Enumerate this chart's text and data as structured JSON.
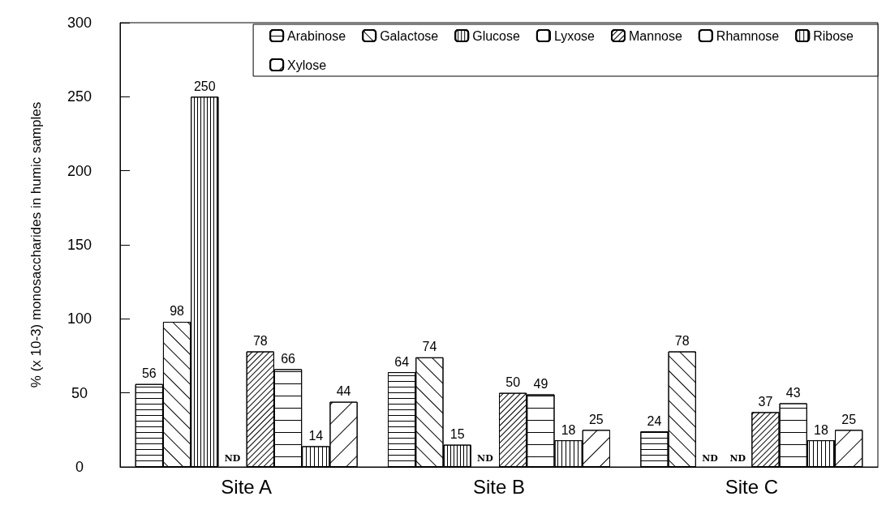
{
  "chart_data": {
    "type": "bar",
    "ylabel": "% (x 10-3) monosaccharides in humic samples",
    "categories": [
      "Site A",
      "Site B",
      "Site C"
    ],
    "ylim": [
      0,
      300
    ],
    "yticks": [
      0,
      50,
      100,
      150,
      200,
      250,
      300
    ],
    "grid": false,
    "legend": "top right",
    "series": [
      {
        "name": "Arabinose",
        "color": "#ffffff",
        "values": [
          56,
          64,
          24
        ],
        "value_labels": [
          "56",
          "64",
          "24"
        ]
      },
      {
        "name": "Galactose",
        "color": "#ffffff",
        "values": [
          98,
          74,
          78
        ],
        "value_labels": [
          "98",
          "74",
          "78"
        ]
      },
      {
        "name": "Glucose",
        "color": "#ffffff",
        "values": [
          250,
          15,
          null
        ],
        "value_labels": [
          "250",
          "15",
          "ND"
        ]
      },
      {
        "name": "Lyxose",
        "color": "#ffffff",
        "values": [
          null,
          null,
          null
        ],
        "value_labels": [
          "ND",
          "ND",
          "ND"
        ]
      },
      {
        "name": "Mannose",
        "color": "#ffffff",
        "values": [
          78,
          50,
          37
        ],
        "value_labels": [
          "78",
          "50",
          "37"
        ]
      },
      {
        "name": "Rhamnose",
        "color": "#ffffff",
        "values": [
          66,
          49,
          43
        ],
        "value_labels": [
          "66",
          "49",
          "43"
        ]
      },
      {
        "name": "Ribose",
        "color": "#ffffff",
        "values": [
          14,
          18,
          18
        ],
        "value_labels": [
          "14",
          "18",
          "18"
        ]
      },
      {
        "name": "Xylose",
        "color": "#ffffff",
        "values": [
          44,
          25,
          25
        ],
        "value_labels": [
          "44",
          "25",
          "25"
        ]
      }
    ]
  }
}
